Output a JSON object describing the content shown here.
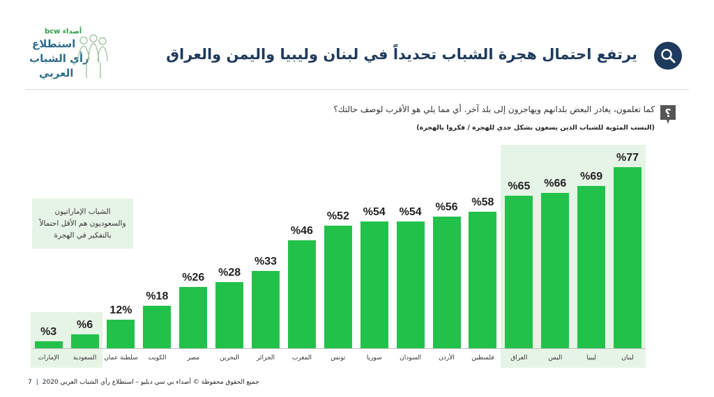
{
  "header": {
    "title": "يرتفع احتمال هجرة الشباب تحديداً في لبنان وليبيا واليمن والعراق",
    "icon": "search-icon"
  },
  "logo": {
    "brand": "bcw أصداء",
    "line1": "استطلاع",
    "line2": "رأي الشباب",
    "line3": "العربي"
  },
  "question": {
    "icon": "question-icon",
    "text": "كما تعلمون، يغادر البعض بلدانهم ويهاجرون إلى بلد آخر. أي مما يلي هو الأقرب لوصف حالتك؟",
    "subtitle": "(النسب المئوية للشباب الذين يسعون بشكل جدي للهجرة / فكروا بالهجرة)"
  },
  "callout": "الشباب الإماراتيون والسعوديون هم الأقل احتمالاً بالتفكير في الهجرة",
  "footer": {
    "page": "7",
    "text": "جميع الحقوق محفوظة © أصداء بي سي دبليو – استطلاع رأي الشباب العربي 2020"
  },
  "colors": {
    "bar": "#22c24a",
    "highlight": "#e6f4e6",
    "title": "#1e3a5c"
  },
  "chart_data": {
    "type": "bar",
    "categories": [
      "لبنان",
      "ليبيا",
      "اليمن",
      "العراق",
      "فلسطين",
      "الأردن",
      "السودان",
      "سوريا",
      "تونس",
      "المغرب",
      "الجزائر",
      "البحرين",
      "مصر",
      "الكويت",
      "سلطنة عمان",
      "السعودية",
      "الإمارات"
    ],
    "values": [
      77,
      69,
      66,
      65,
      58,
      56,
      54,
      54,
      52,
      46,
      33,
      28,
      26,
      18,
      12,
      6,
      3
    ],
    "labels": [
      "%77",
      "%69",
      "%66",
      "%65",
      "%58",
      "%56",
      "%54",
      "%54",
      "%52",
      "%46",
      "%33",
      "%28",
      "%26",
      "%18",
      "12%",
      "%6",
      "%3"
    ],
    "highlighted": [
      "لبنان",
      "ليبيا",
      "اليمن",
      "العراق",
      "السعودية",
      "الإمارات"
    ],
    "ylim": [
      0,
      77
    ],
    "xlabel": "",
    "ylabel": "",
    "grid": false
  }
}
